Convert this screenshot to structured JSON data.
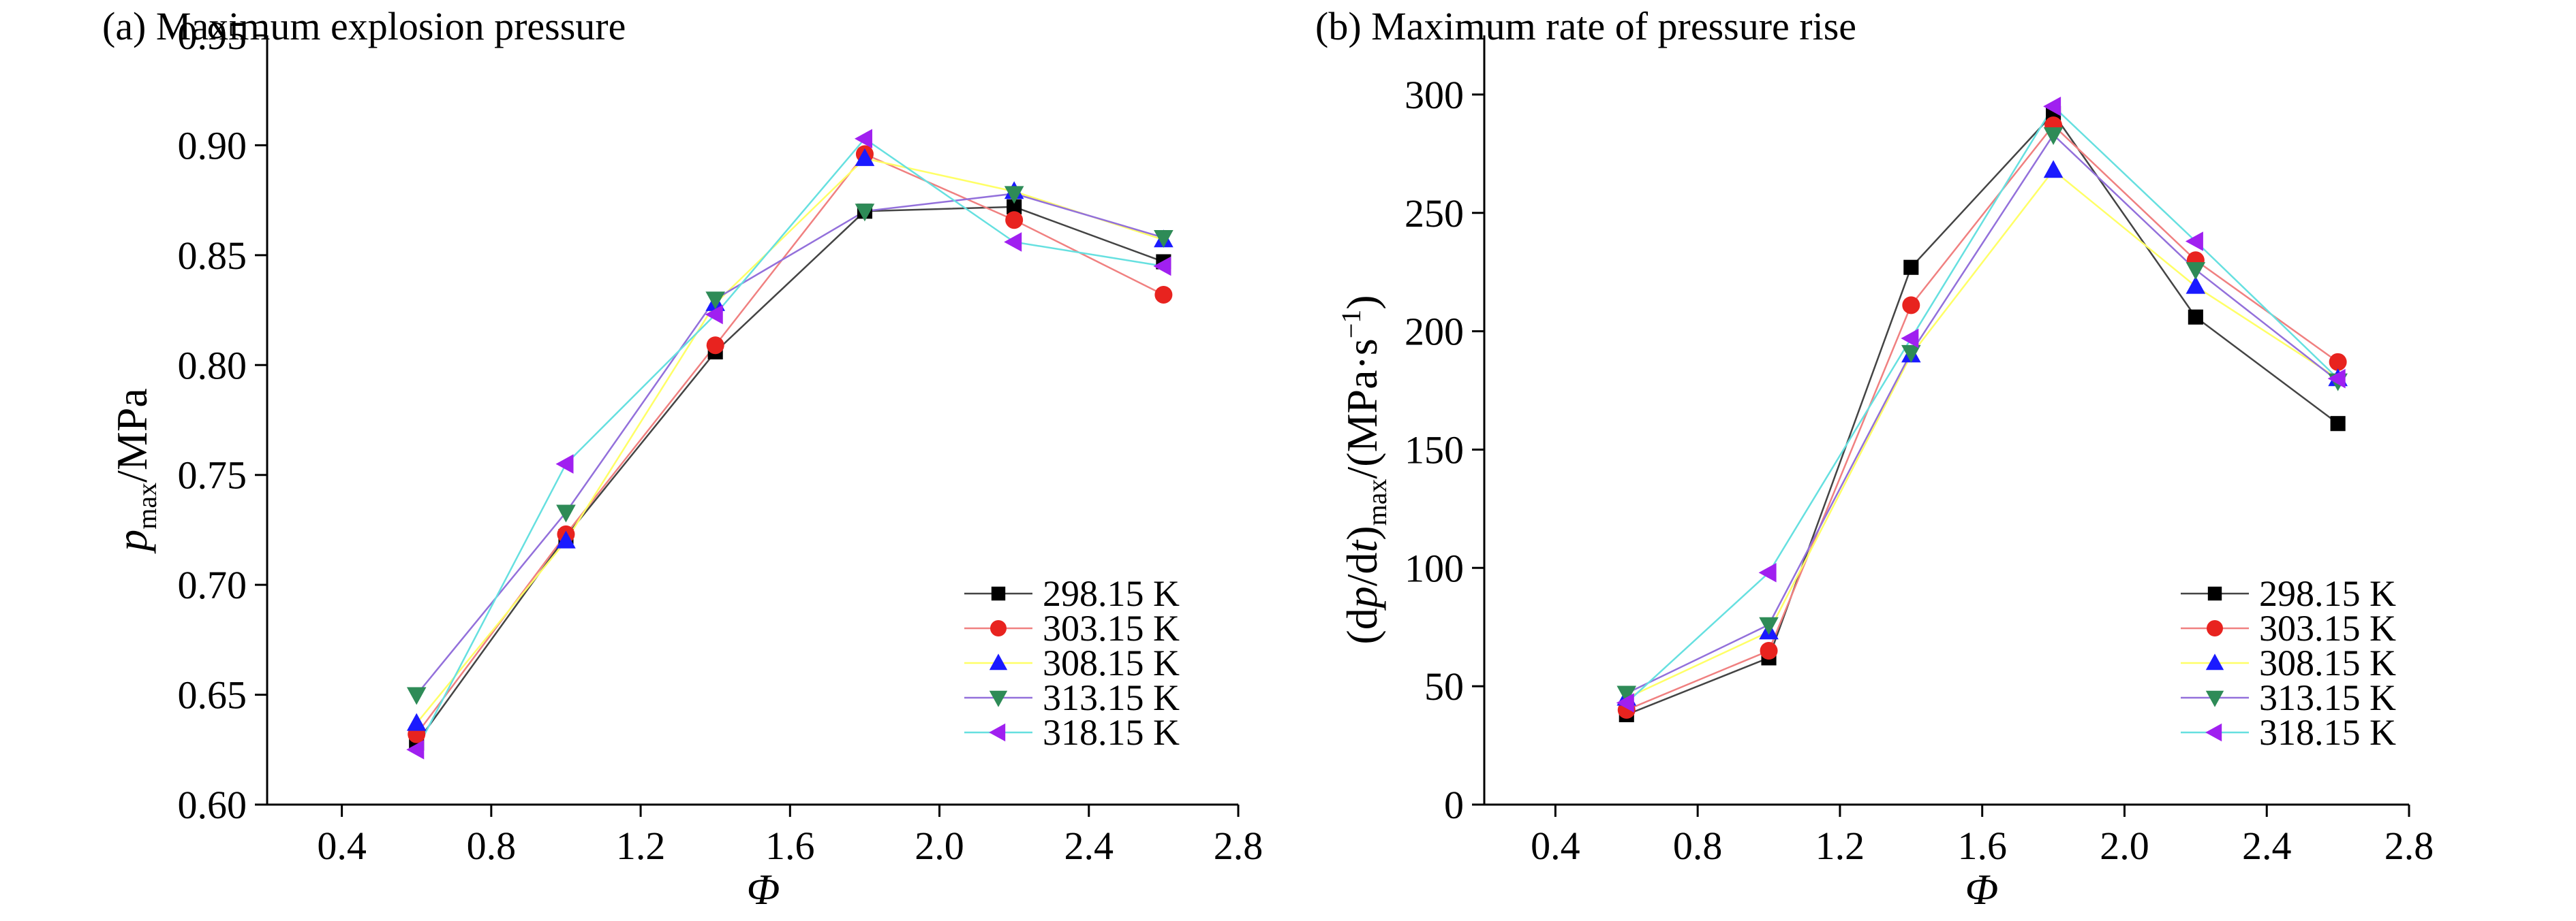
{
  "chart_data": [
    {
      "type": "line",
      "title": "(a) Maximum explosion pressure",
      "xlabel": "Φ",
      "ylabel": {
        "main": "p",
        "sub": "max",
        "rest": "/MPa"
      },
      "xlim": [
        0.2,
        2.8
      ],
      "ylim": [
        0.6,
        0.95
      ],
      "xticks": [
        0.4,
        0.8,
        1.2,
        1.6,
        2.0,
        2.4,
        2.8
      ],
      "xtick_labels": [
        "0.4",
        "0.8",
        "1.2",
        "1.6",
        "2.0",
        "2.4",
        "2.8"
      ],
      "yticks": [
        0.6,
        0.65,
        0.7,
        0.75,
        0.8,
        0.85,
        0.9,
        0.95
      ],
      "ytick_labels": [
        "0.60",
        "0.65",
        "0.70",
        "0.75",
        "0.80",
        "0.85",
        "0.90",
        "0.95"
      ],
      "grid": false,
      "legend_position": "bottom-right",
      "x": [
        0.6,
        1.0,
        1.4,
        1.8,
        2.2,
        2.6
      ],
      "series": [
        {
          "name": "298.15 K",
          "color": "#000000",
          "marker": "square",
          "values": [
            0.628,
            0.722,
            0.806,
            0.87,
            0.872,
            0.847
          ]
        },
        {
          "name": "303.15 K",
          "color": "#e8231f",
          "marker": "circle",
          "values": [
            0.632,
            0.723,
            0.809,
            0.896,
            0.866,
            0.832
          ]
        },
        {
          "name": "308.15 K",
          "color": "#1a1aff",
          "marker": "triangle-up",
          "values": [
            0.637,
            0.72,
            0.828,
            0.894,
            0.879,
            0.857
          ]
        },
        {
          "name": "313.15 K",
          "color": "#2e8b57",
          "marker": "triangle-down",
          "values": [
            0.65,
            0.733,
            0.83,
            0.87,
            0.878,
            0.858
          ]
        },
        {
          "name": "318.15 K",
          "color": "#a020f0",
          "marker": "triangle-left",
          "values": [
            0.625,
            0.755,
            0.823,
            0.903,
            0.856,
            0.845
          ]
        }
      ],
      "line_colors": [
        "#444444",
        "#f08080",
        "#ffff66",
        "#9370db",
        "#66e0e0"
      ]
    },
    {
      "type": "line",
      "title": "(b) Maximum rate of pressure rise",
      "xlabel": "Φ",
      "ylabel": {
        "pre": "(d",
        "p": "p",
        "mid": "/d",
        "t": "t",
        "close": ")",
        "sub": "max",
        "rest": "/(MPa·s",
        "sup": "−1",
        "end": ")"
      },
      "xlim": [
        0.2,
        2.8
      ],
      "ylim": [
        0,
        325
      ],
      "xticks": [
        0.4,
        0.8,
        1.2,
        1.6,
        2.0,
        2.4,
        2.8
      ],
      "xtick_labels": [
        "0.4",
        "0.8",
        "1.2",
        "1.6",
        "2.0",
        "2.4",
        "2.8"
      ],
      "yticks": [
        0,
        50,
        100,
        150,
        200,
        250,
        300
      ],
      "ytick_labels": [
        "0",
        "50",
        "100",
        "150",
        "200",
        "250",
        "300"
      ],
      "grid": false,
      "legend_position": "bottom-right",
      "x": [
        0.6,
        1.0,
        1.4,
        1.8,
        2.2,
        2.6
      ],
      "series": [
        {
          "name": "298.15 K",
          "color": "#000000",
          "marker": "square",
          "values": [
            38,
            62,
            227,
            292,
            206,
            161
          ]
        },
        {
          "name": "303.15 K",
          "color": "#e8231f",
          "marker": "circle",
          "values": [
            40,
            65,
            211,
            287,
            230,
            187
          ]
        },
        {
          "name": "308.15 K",
          "color": "#1a1aff",
          "marker": "triangle-up",
          "values": [
            45,
            73,
            190,
            268,
            219,
            180
          ]
        },
        {
          "name": "313.15 K",
          "color": "#2e8b57",
          "marker": "triangle-down",
          "values": [
            47,
            76,
            191,
            283,
            226,
            179
          ]
        },
        {
          "name": "318.15 K",
          "color": "#a020f0",
          "marker": "triangle-left",
          "values": [
            43,
            98,
            197,
            295,
            238,
            180
          ]
        }
      ],
      "line_colors": [
        "#444444",
        "#f08080",
        "#ffff66",
        "#9370db",
        "#66e0e0"
      ]
    }
  ]
}
